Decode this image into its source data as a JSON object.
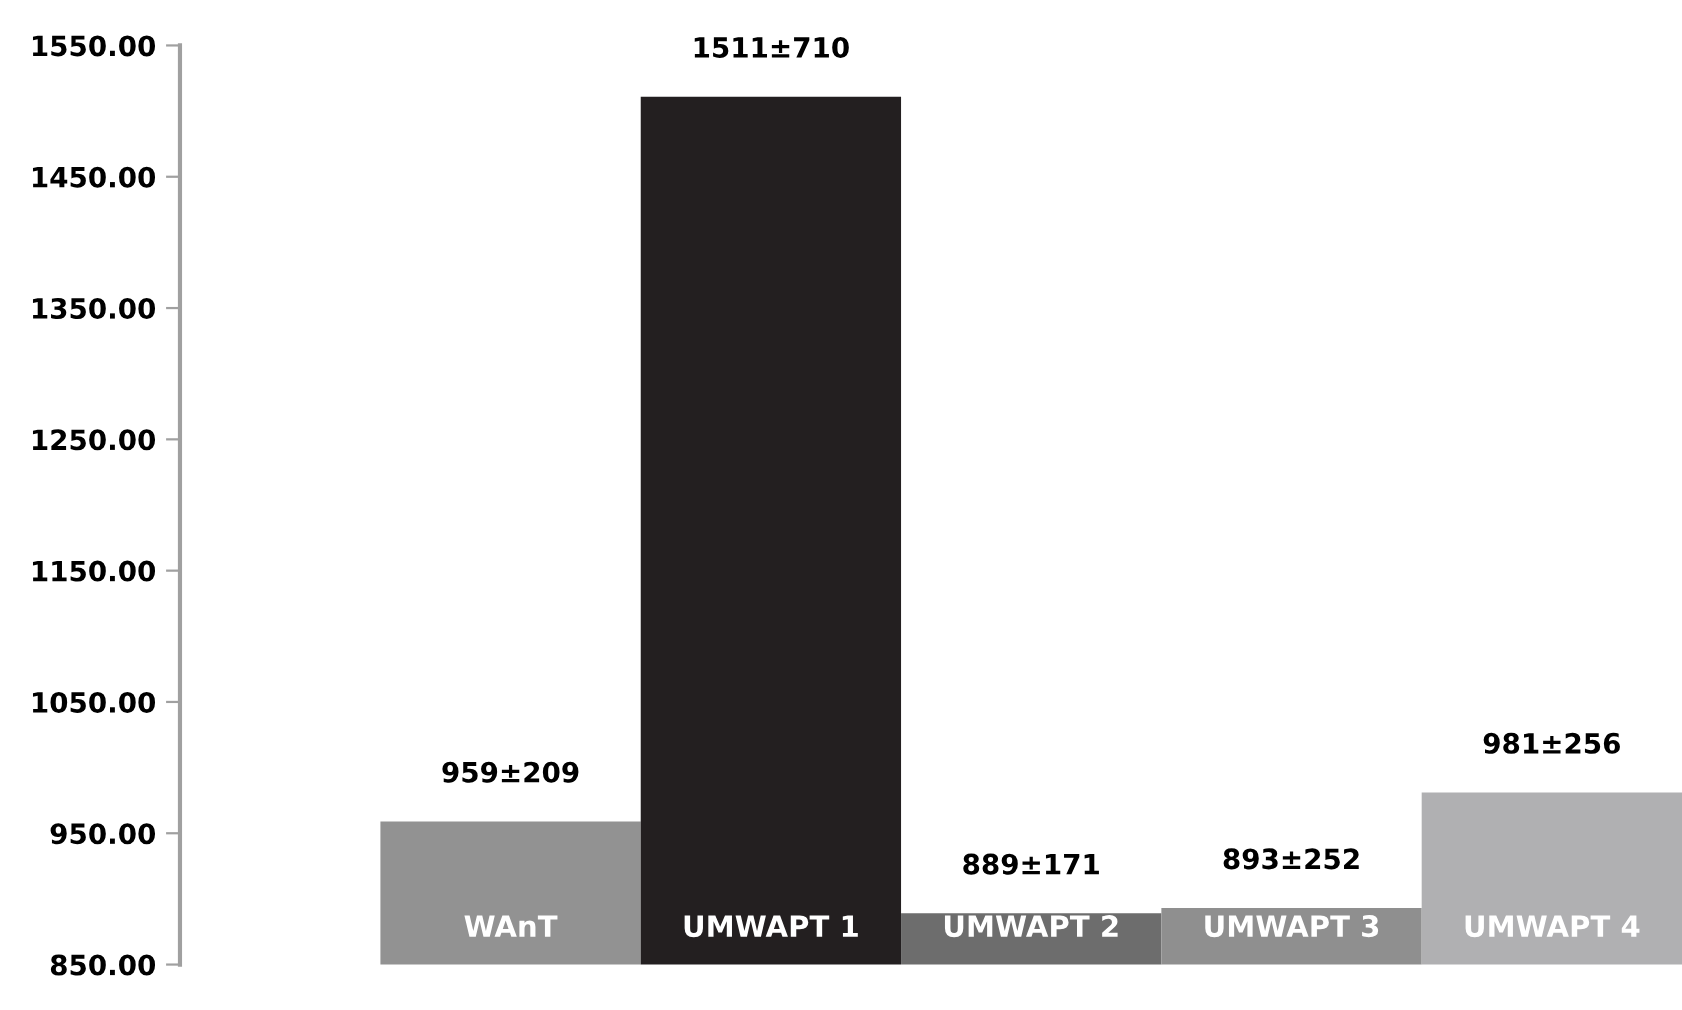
{
  "chart_data": {
    "type": "bar",
    "categories": [
      "WAnT",
      "UMWAPT 1",
      "UMWAPT 2",
      "UMWAPT 3",
      "UMWAPT 4"
    ],
    "values": [
      959,
      1511,
      889,
      893,
      981
    ],
    "colors": [
      "#929292",
      "#231f20",
      "#6d6d6d",
      "#8f8f8f",
      "#b0b0b2"
    ],
    "value_labels": [
      "959±209",
      "1511±710",
      "889±171",
      "893±252",
      "981±256"
    ],
    "ylim": [
      850,
      1550
    ],
    "yticks": [
      {
        "value": 850,
        "label": "850.00"
      },
      {
        "value": 950,
        "label": "950.00"
      },
      {
        "value": 1050,
        "label": "1050.00"
      },
      {
        "value": 1150,
        "label": "1150.00"
      },
      {
        "value": 1250,
        "label": "1250.00"
      },
      {
        "value": 1350,
        "label": "1350.00"
      },
      {
        "value": 1450,
        "label": "1450.00"
      },
      {
        "value": 1550,
        "label": "1550.00"
      }
    ],
    "grid": false,
    "legend": false
  }
}
